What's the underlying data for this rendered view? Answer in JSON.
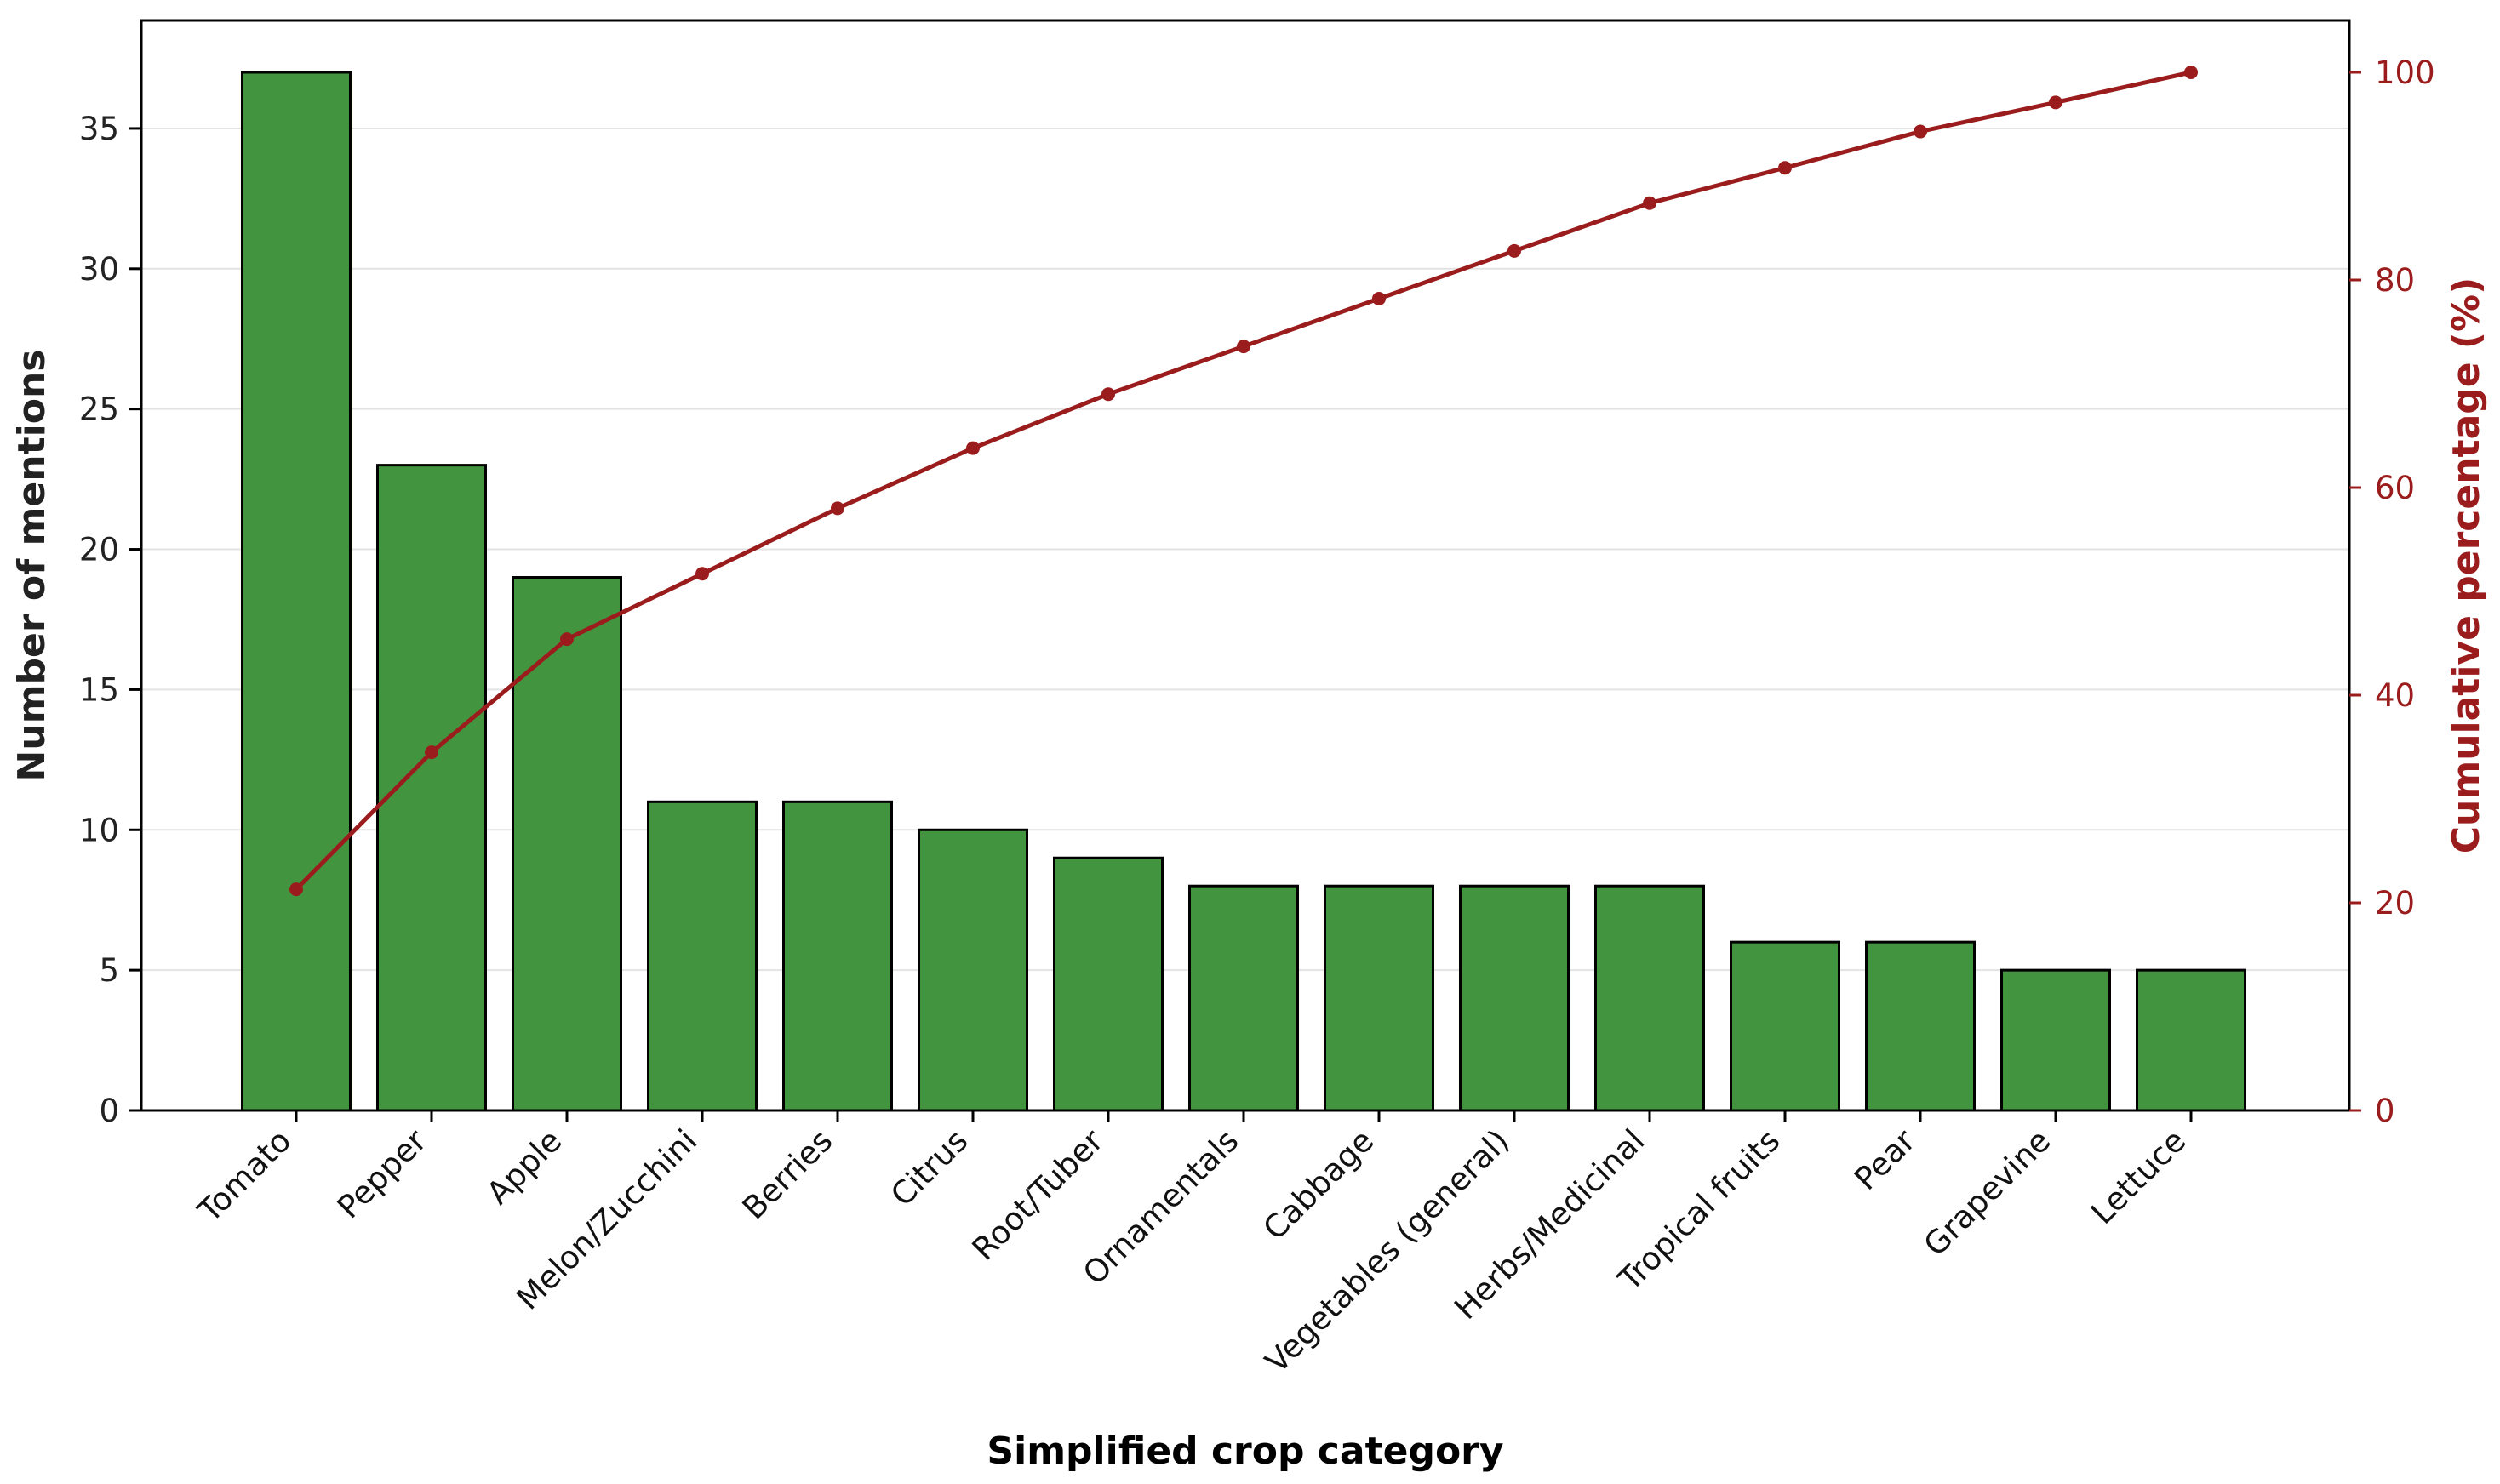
{
  "chart_data": {
    "type": "bar",
    "categories": [
      "Tomato",
      "Pepper",
      "Apple",
      "Melon/Zucchini",
      "Berries",
      "Citrus",
      "Root/Tuber",
      "Ornamentals",
      "Cabbage",
      "Vegetables (general)",
      "Herbs/Medicinal",
      "Tropical fruits",
      "Pear",
      "Grapevine",
      "Lettuce"
    ],
    "series": [
      {
        "values": [
          37,
          23,
          19,
          11,
          11,
          10,
          9,
          8,
          8,
          8,
          8,
          6,
          6,
          5,
          5
        ],
        "axis": "left",
        "kind": "bar",
        "color": "#43943f"
      },
      {
        "values": [
          21.3,
          34.5,
          45.4,
          51.7,
          58.0,
          63.8,
          69.0,
          73.6,
          78.2,
          82.8,
          87.4,
          90.8,
          94.3,
          97.1,
          100.0
        ],
        "axis": "right",
        "kind": "line",
        "color": "#9b1c1c"
      }
    ],
    "xlabel": "Simplified crop category",
    "ylabel": "Number of mentions",
    "y2label": "Cumulative percentage (%)",
    "ylim": [
      0,
      38.85
    ],
    "y2lim": [
      0,
      105
    ],
    "yticks": [
      0,
      5,
      10,
      15,
      20,
      25,
      30,
      35
    ],
    "y2ticks": [
      0,
      20,
      40,
      60,
      80,
      100
    ],
    "grid": "horizontal",
    "colors": {
      "bar": "#43943f",
      "bar_edge": "#000000",
      "line": "#9b1c1c",
      "right_axis": "#9b1c1c",
      "grid": "#e3e3e3"
    }
  }
}
